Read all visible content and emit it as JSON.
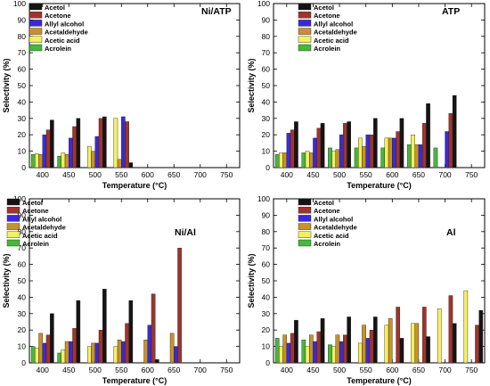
{
  "colors": {
    "Acetol": "#141414",
    "Acetone": "#a0342a",
    "Allyl alcohol": "#3a2ad6",
    "Acetaldehyde": "#c8912a",
    "Acetic acid": "#f4f060",
    "Acrolein": "#46b83a"
  },
  "chart_data": [
    {
      "type": "bar",
      "title": "Ni/ATP",
      "xlabel": "Temperature (°C)",
      "ylabel": "Selectivity (%)",
      "categories": [
        "400",
        "450",
        "500",
        "550",
        "600",
        "650",
        "700",
        "750"
      ],
      "ylim": [
        0,
        100
      ],
      "yticks": [
        0,
        10,
        20,
        30,
        40,
        50,
        60,
        70,
        80,
        90,
        100
      ],
      "legend_position": "top-right",
      "series": [
        {
          "name": "Acrolein",
          "values": [
            8,
            7,
            0,
            0,
            0,
            0,
            0,
            0
          ]
        },
        {
          "name": "Acetic acid",
          "values": [
            8.5,
            9,
            13,
            30,
            0,
            0,
            0,
            0
          ]
        },
        {
          "name": "Acetaldehyde",
          "values": [
            8,
            8,
            10,
            5,
            0,
            0,
            0,
            0
          ]
        },
        {
          "name": "Allyl alcohol",
          "values": [
            20,
            18,
            19,
            31,
            0,
            0,
            0,
            0
          ]
        },
        {
          "name": "Acetone",
          "values": [
            23,
            25,
            30,
            28,
            0,
            0,
            0,
            0
          ]
        },
        {
          "name": "Acetol",
          "values": [
            29,
            30,
            31,
            3,
            0,
            0,
            0,
            0
          ]
        }
      ]
    },
    {
      "type": "bar",
      "title": "ATP",
      "xlabel": "Temperature (°C)",
      "ylabel": "Selectivity (%)",
      "categories": [
        "400",
        "450",
        "500",
        "550",
        "600",
        "650",
        "700",
        "750"
      ],
      "ylim": [
        0,
        100
      ],
      "yticks": [
        0,
        10,
        20,
        30,
        40,
        50,
        60,
        70,
        80,
        90,
        100
      ],
      "legend_position": "top-right",
      "series": [
        {
          "name": "Acrolein",
          "values": [
            8,
            9,
            12,
            12,
            12,
            14,
            12,
            0
          ]
        },
        {
          "name": "Acetic acid",
          "values": [
            9,
            10,
            10,
            18,
            18,
            20,
            0,
            0
          ]
        },
        {
          "name": "Acetaldehyde",
          "values": [
            9,
            9,
            11,
            13,
            18,
            14,
            0,
            0
          ]
        },
        {
          "name": "Allyl alcohol",
          "values": [
            21,
            18,
            20,
            20,
            18,
            14,
            22,
            0
          ]
        },
        {
          "name": "Acetone",
          "values": [
            23,
            24,
            27,
            20,
            22,
            27,
            33,
            0
          ]
        },
        {
          "name": "Acetol",
          "values": [
            28,
            27,
            28,
            30,
            30,
            39,
            44,
            0
          ]
        }
      ]
    },
    {
      "type": "bar",
      "title": "Ni/Al",
      "xlabel": "Temperature (°C)",
      "ylabel": "Selectivity (%)",
      "categories": [
        "400",
        "450",
        "500",
        "550",
        "600",
        "650",
        "700",
        "750"
      ],
      "ylim": [
        0,
        100
      ],
      "yticks": [
        0,
        10,
        20,
        30,
        40,
        50,
        60,
        70,
        80,
        90,
        100
      ],
      "legend_position": "top-left",
      "series": [
        {
          "name": "Acrolein",
          "values": [
            10,
            6,
            0,
            0,
            0,
            0,
            0,
            0
          ]
        },
        {
          "name": "Acetic acid",
          "values": [
            9,
            8,
            10,
            10,
            0,
            0,
            0,
            0
          ]
        },
        {
          "name": "Acetaldehyde",
          "values": [
            18,
            13,
            12,
            14,
            14,
            18,
            0,
            0
          ]
        },
        {
          "name": "Allyl alcohol",
          "values": [
            12,
            13,
            12,
            13,
            23,
            10,
            0,
            0
          ]
        },
        {
          "name": "Acetone",
          "values": [
            17,
            21,
            20,
            24,
            42,
            70,
            0,
            0
          ]
        },
        {
          "name": "Acetol",
          "values": [
            30,
            38,
            45,
            38,
            2,
            0,
            0,
            0
          ]
        }
      ]
    },
    {
      "type": "bar",
      "title": "Al",
      "xlabel": "Temperature (°C)",
      "ylabel": "Selectivity (%)",
      "categories": [
        "400",
        "450",
        "500",
        "550",
        "600",
        "650",
        "700",
        "750"
      ],
      "ylim": [
        0,
        100
      ],
      "yticks": [
        0,
        10,
        20,
        30,
        40,
        50,
        60,
        70,
        80,
        90,
        100
      ],
      "legend_position": "top-left",
      "series": [
        {
          "name": "Acrolein",
          "values": [
            15,
            14,
            11,
            0,
            0,
            0,
            0,
            0
          ]
        },
        {
          "name": "Acetic acid",
          "values": [
            10,
            10,
            10,
            12,
            23,
            24,
            33,
            44
          ]
        },
        {
          "name": "Acetaldehyde",
          "values": [
            17,
            17,
            17,
            23,
            27,
            24,
            0,
            0
          ]
        },
        {
          "name": "Allyl alcohol",
          "values": [
            12,
            13,
            13,
            15,
            0,
            0,
            0,
            0
          ]
        },
        {
          "name": "Acetone",
          "values": [
            18,
            19,
            17,
            20,
            34,
            34,
            41,
            23
          ]
        },
        {
          "name": "Acetol",
          "values": [
            26,
            27,
            28,
            28,
            15,
            16,
            24,
            32
          ]
        }
      ]
    }
  ]
}
